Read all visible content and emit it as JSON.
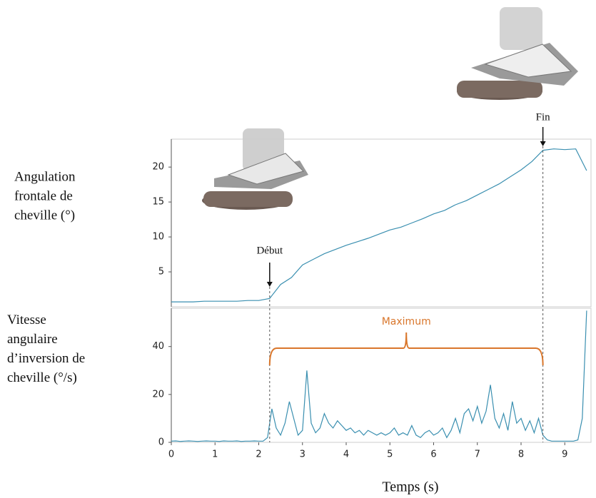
{
  "chart_data": [
    {
      "type": "line",
      "ylabel": [
        "Angulation",
        "frontale de",
        "cheville (°)"
      ],
      "x": [
        0,
        0.25,
        0.5,
        0.75,
        1,
        1.25,
        1.5,
        1.75,
        2,
        2.25,
        2.5,
        2.75,
        3,
        3.25,
        3.5,
        3.75,
        4,
        4.25,
        4.5,
        4.75,
        5,
        5.25,
        5.5,
        5.75,
        6,
        6.25,
        6.5,
        6.75,
        7,
        7.25,
        7.5,
        7.75,
        8,
        8.25,
        8.5,
        8.75,
        9,
        9.25,
        9.5
      ],
      "series": [
        {
          "color": "#3a8fb0",
          "values": [
            0.7,
            0.7,
            0.7,
            0.8,
            0.8,
            0.8,
            0.8,
            0.9,
            0.9,
            1.2,
            3.2,
            4.2,
            6,
            6.8,
            7.6,
            8.2,
            8.8,
            9.3,
            9.8,
            10.4,
            11,
            11.4,
            12,
            12.6,
            13.3,
            13.8,
            14.6,
            15.2,
            16,
            16.8,
            17.6,
            18.6,
            19.6,
            20.8,
            22.4,
            22.6,
            22.5,
            22.6,
            19.5
          ]
        }
      ],
      "xlim": [
        0,
        9.6
      ],
      "ylim": [
        0,
        24
      ],
      "yticks": [
        5,
        10,
        15,
        20
      ],
      "events": [
        {
          "label": "Début",
          "x": 2.25
        },
        {
          "label": "Fin",
          "x": 8.5
        }
      ]
    },
    {
      "type": "line",
      "ylabel": [
        "Vitesse",
        "angulaire",
        "d’inversion de",
        "cheville (°/s)"
      ],
      "xlabel": "Temps (s)",
      "x": [
        0,
        0.1,
        0.2,
        0.3,
        0.4,
        0.5,
        0.6,
        0.7,
        0.8,
        0.9,
        1,
        1.1,
        1.2,
        1.3,
        1.4,
        1.5,
        1.6,
        1.7,
        1.8,
        1.9,
        2,
        2.1,
        2.2,
        2.3,
        2.4,
        2.5,
        2.6,
        2.7,
        2.8,
        2.9,
        3,
        3.1,
        3.2,
        3.3,
        3.4,
        3.5,
        3.6,
        3.7,
        3.8,
        3.9,
        4,
        4.1,
        4.2,
        4.3,
        4.4,
        4.5,
        4.6,
        4.7,
        4.8,
        4.9,
        5,
        5.1,
        5.2,
        5.3,
        5.4,
        5.5,
        5.6,
        5.7,
        5.8,
        5.9,
        6,
        6.1,
        6.2,
        6.3,
        6.4,
        6.5,
        6.6,
        6.7,
        6.8,
        6.9,
        7,
        7.1,
        7.2,
        7.3,
        7.4,
        7.5,
        7.6,
        7.7,
        7.8,
        7.9,
        8,
        8.1,
        8.2,
        8.3,
        8.4,
        8.5,
        8.6,
        8.7,
        8.8,
        8.9,
        9,
        9.1,
        9.2,
        9.3,
        9.4,
        9.5
      ],
      "series": [
        {
          "color": "#3a8fb0",
          "values": [
            0.5,
            0.6,
            0.4,
            0.5,
            0.6,
            0.5,
            0.4,
            0.5,
            0.6,
            0.5,
            0.5,
            0.4,
            0.6,
            0.5,
            0.5,
            0.6,
            0.4,
            0.5,
            0.5,
            0.6,
            0.5,
            0.5,
            2,
            14,
            6,
            3,
            8,
            17,
            10,
            3,
            5,
            30,
            8,
            4,
            6,
            12,
            8,
            6,
            9,
            7,
            5,
            6,
            4,
            5,
            3,
            5,
            4,
            3,
            4,
            3,
            4,
            6,
            3,
            4,
            3,
            7,
            3,
            2,
            4,
            5,
            3,
            4,
            6,
            2,
            5,
            10,
            4,
            12,
            14,
            9,
            15,
            8,
            13,
            24,
            10,
            6,
            12,
            5,
            17,
            8,
            10,
            5,
            9,
            4,
            10,
            3,
            1,
            0.5,
            0.5,
            0.5,
            0.5,
            0.5,
            0.5,
            1,
            10,
            55
          ]
        }
      ],
      "xlim": [
        0,
        9.6
      ],
      "xticks": [
        0,
        1,
        2,
        3,
        4,
        5,
        6,
        7,
        8,
        9
      ],
      "ylim": [
        0,
        56
      ],
      "yticks": [
        0,
        20,
        40
      ],
      "annotation": {
        "label": "Maximum",
        "color": "#d9762b"
      }
    }
  ]
}
